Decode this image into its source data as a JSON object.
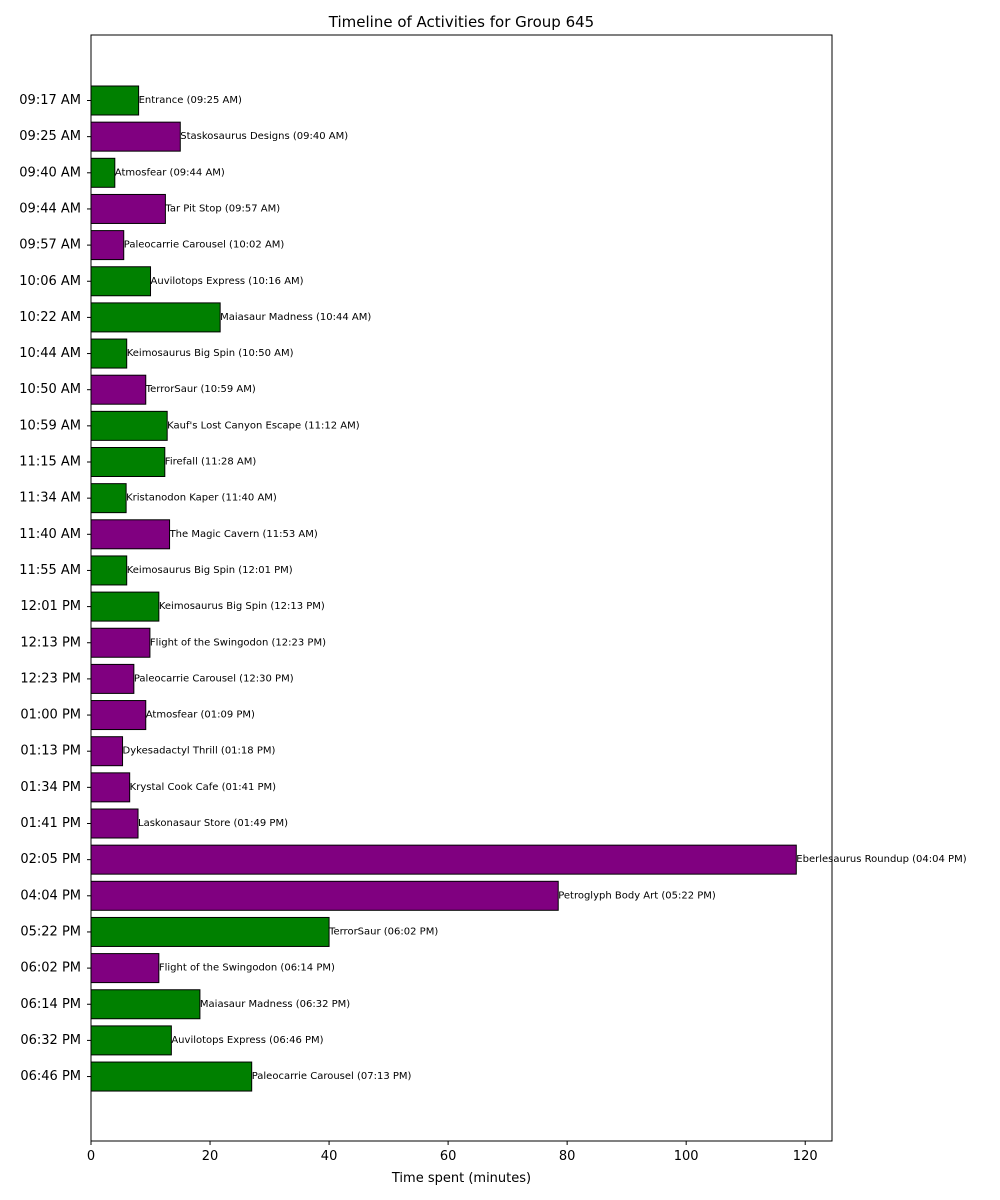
{
  "chart_data": {
    "type": "bar",
    "orientation": "horizontal",
    "title": "Timeline of Activities for Group 645",
    "xlabel": "Time spent (minutes)",
    "ylabel": "",
    "xlim": [
      0,
      124.5
    ],
    "xticks": [
      0,
      20,
      40,
      60,
      80,
      100,
      120
    ],
    "grid": false,
    "colors": {
      "green": "#008000",
      "purple": "#800080",
      "edge": "#000000"
    },
    "bars": [
      {
        "start": "09:17 AM",
        "label": "Entrance (09:25 AM)",
        "value": 8,
        "color": "green"
      },
      {
        "start": "09:25 AM",
        "label": "Staskosaurus Designs (09:40 AM)",
        "value": 15,
        "color": "purple"
      },
      {
        "start": "09:40 AM",
        "label": "Atmosfear (09:44 AM)",
        "value": 4,
        "color": "green"
      },
      {
        "start": "09:44 AM",
        "label": "Tar Pit Stop (09:57 AM)",
        "value": 12.5,
        "color": "purple"
      },
      {
        "start": "09:57 AM",
        "label": "Paleocarrie Carousel (10:02 AM)",
        "value": 5.5,
        "color": "purple"
      },
      {
        "start": "10:06 AM",
        "label": "Auvilotops Express (10:16 AM)",
        "value": 10,
        "color": "green"
      },
      {
        "start": "10:22 AM",
        "label": "Maiasaur Madness (10:44 AM)",
        "value": 21.7,
        "color": "green"
      },
      {
        "start": "10:44 AM",
        "label": "Keimosaurus Big Spin (10:50 AM)",
        "value": 6,
        "color": "green"
      },
      {
        "start": "10:50 AM",
        "label": "TerrorSaur  (10:59 AM)",
        "value": 9.2,
        "color": "purple"
      },
      {
        "start": "10:59 AM",
        "label": "Kauf's Lost Canyon Escape (11:12 AM)",
        "value": 12.8,
        "color": "green"
      },
      {
        "start": "11:15 AM",
        "label": "Firefall (11:28 AM)",
        "value": 12.4,
        "color": "green"
      },
      {
        "start": "11:34 AM",
        "label": "Kristanodon Kaper (11:40 AM)",
        "value": 5.9,
        "color": "green"
      },
      {
        "start": "11:40 AM",
        "label": "The Magic Cavern (11:53 AM)",
        "value": 13.2,
        "color": "purple"
      },
      {
        "start": "11:55 AM",
        "label": "Keimosaurus Big Spin (12:01 PM)",
        "value": 6,
        "color": "green"
      },
      {
        "start": "12:01 PM",
        "label": "Keimosaurus Big Spin (12:13 PM)",
        "value": 11.4,
        "color": "green"
      },
      {
        "start": "12:13 PM",
        "label": "Flight of the Swingodon (12:23 PM)",
        "value": 9.9,
        "color": "purple"
      },
      {
        "start": "12:23 PM",
        "label": "Paleocarrie Carousel (12:30 PM)",
        "value": 7.2,
        "color": "purple"
      },
      {
        "start": "01:00 PM",
        "label": "Atmosfear (01:09 PM)",
        "value": 9.2,
        "color": "purple"
      },
      {
        "start": "01:13 PM",
        "label": "Dykesadactyl Thrill (01:18 PM)",
        "value": 5.3,
        "color": "purple"
      },
      {
        "start": "01:34 PM",
        "label": "Krystal Cook Cafe (01:41 PM)",
        "value": 6.5,
        "color": "purple"
      },
      {
        "start": "01:41 PM",
        "label": "Laskonasaur Store (01:49 PM)",
        "value": 7.9,
        "color": "purple"
      },
      {
        "start": "02:05 PM",
        "label": "Eberlesaurus Roundup (04:04 PM)",
        "value": 118.5,
        "color": "purple"
      },
      {
        "start": "04:04 PM",
        "label": "Petroglyph Body Art (05:22 PM)",
        "value": 78.5,
        "color": "purple"
      },
      {
        "start": "05:22 PM",
        "label": "TerrorSaur  (06:02 PM)",
        "value": 40,
        "color": "green"
      },
      {
        "start": "06:02 PM",
        "label": "Flight of the Swingodon (06:14 PM)",
        "value": 11.4,
        "color": "purple"
      },
      {
        "start": "06:14 PM",
        "label": "Maiasaur Madness (06:32 PM)",
        "value": 18.3,
        "color": "green"
      },
      {
        "start": "06:32 PM",
        "label": "Auvilotops Express (06:46 PM)",
        "value": 13.5,
        "color": "green"
      },
      {
        "start": "06:46 PM",
        "label": "Paleocarrie Carousel (07:13 PM)",
        "value": 27,
        "color": "green"
      }
    ]
  }
}
